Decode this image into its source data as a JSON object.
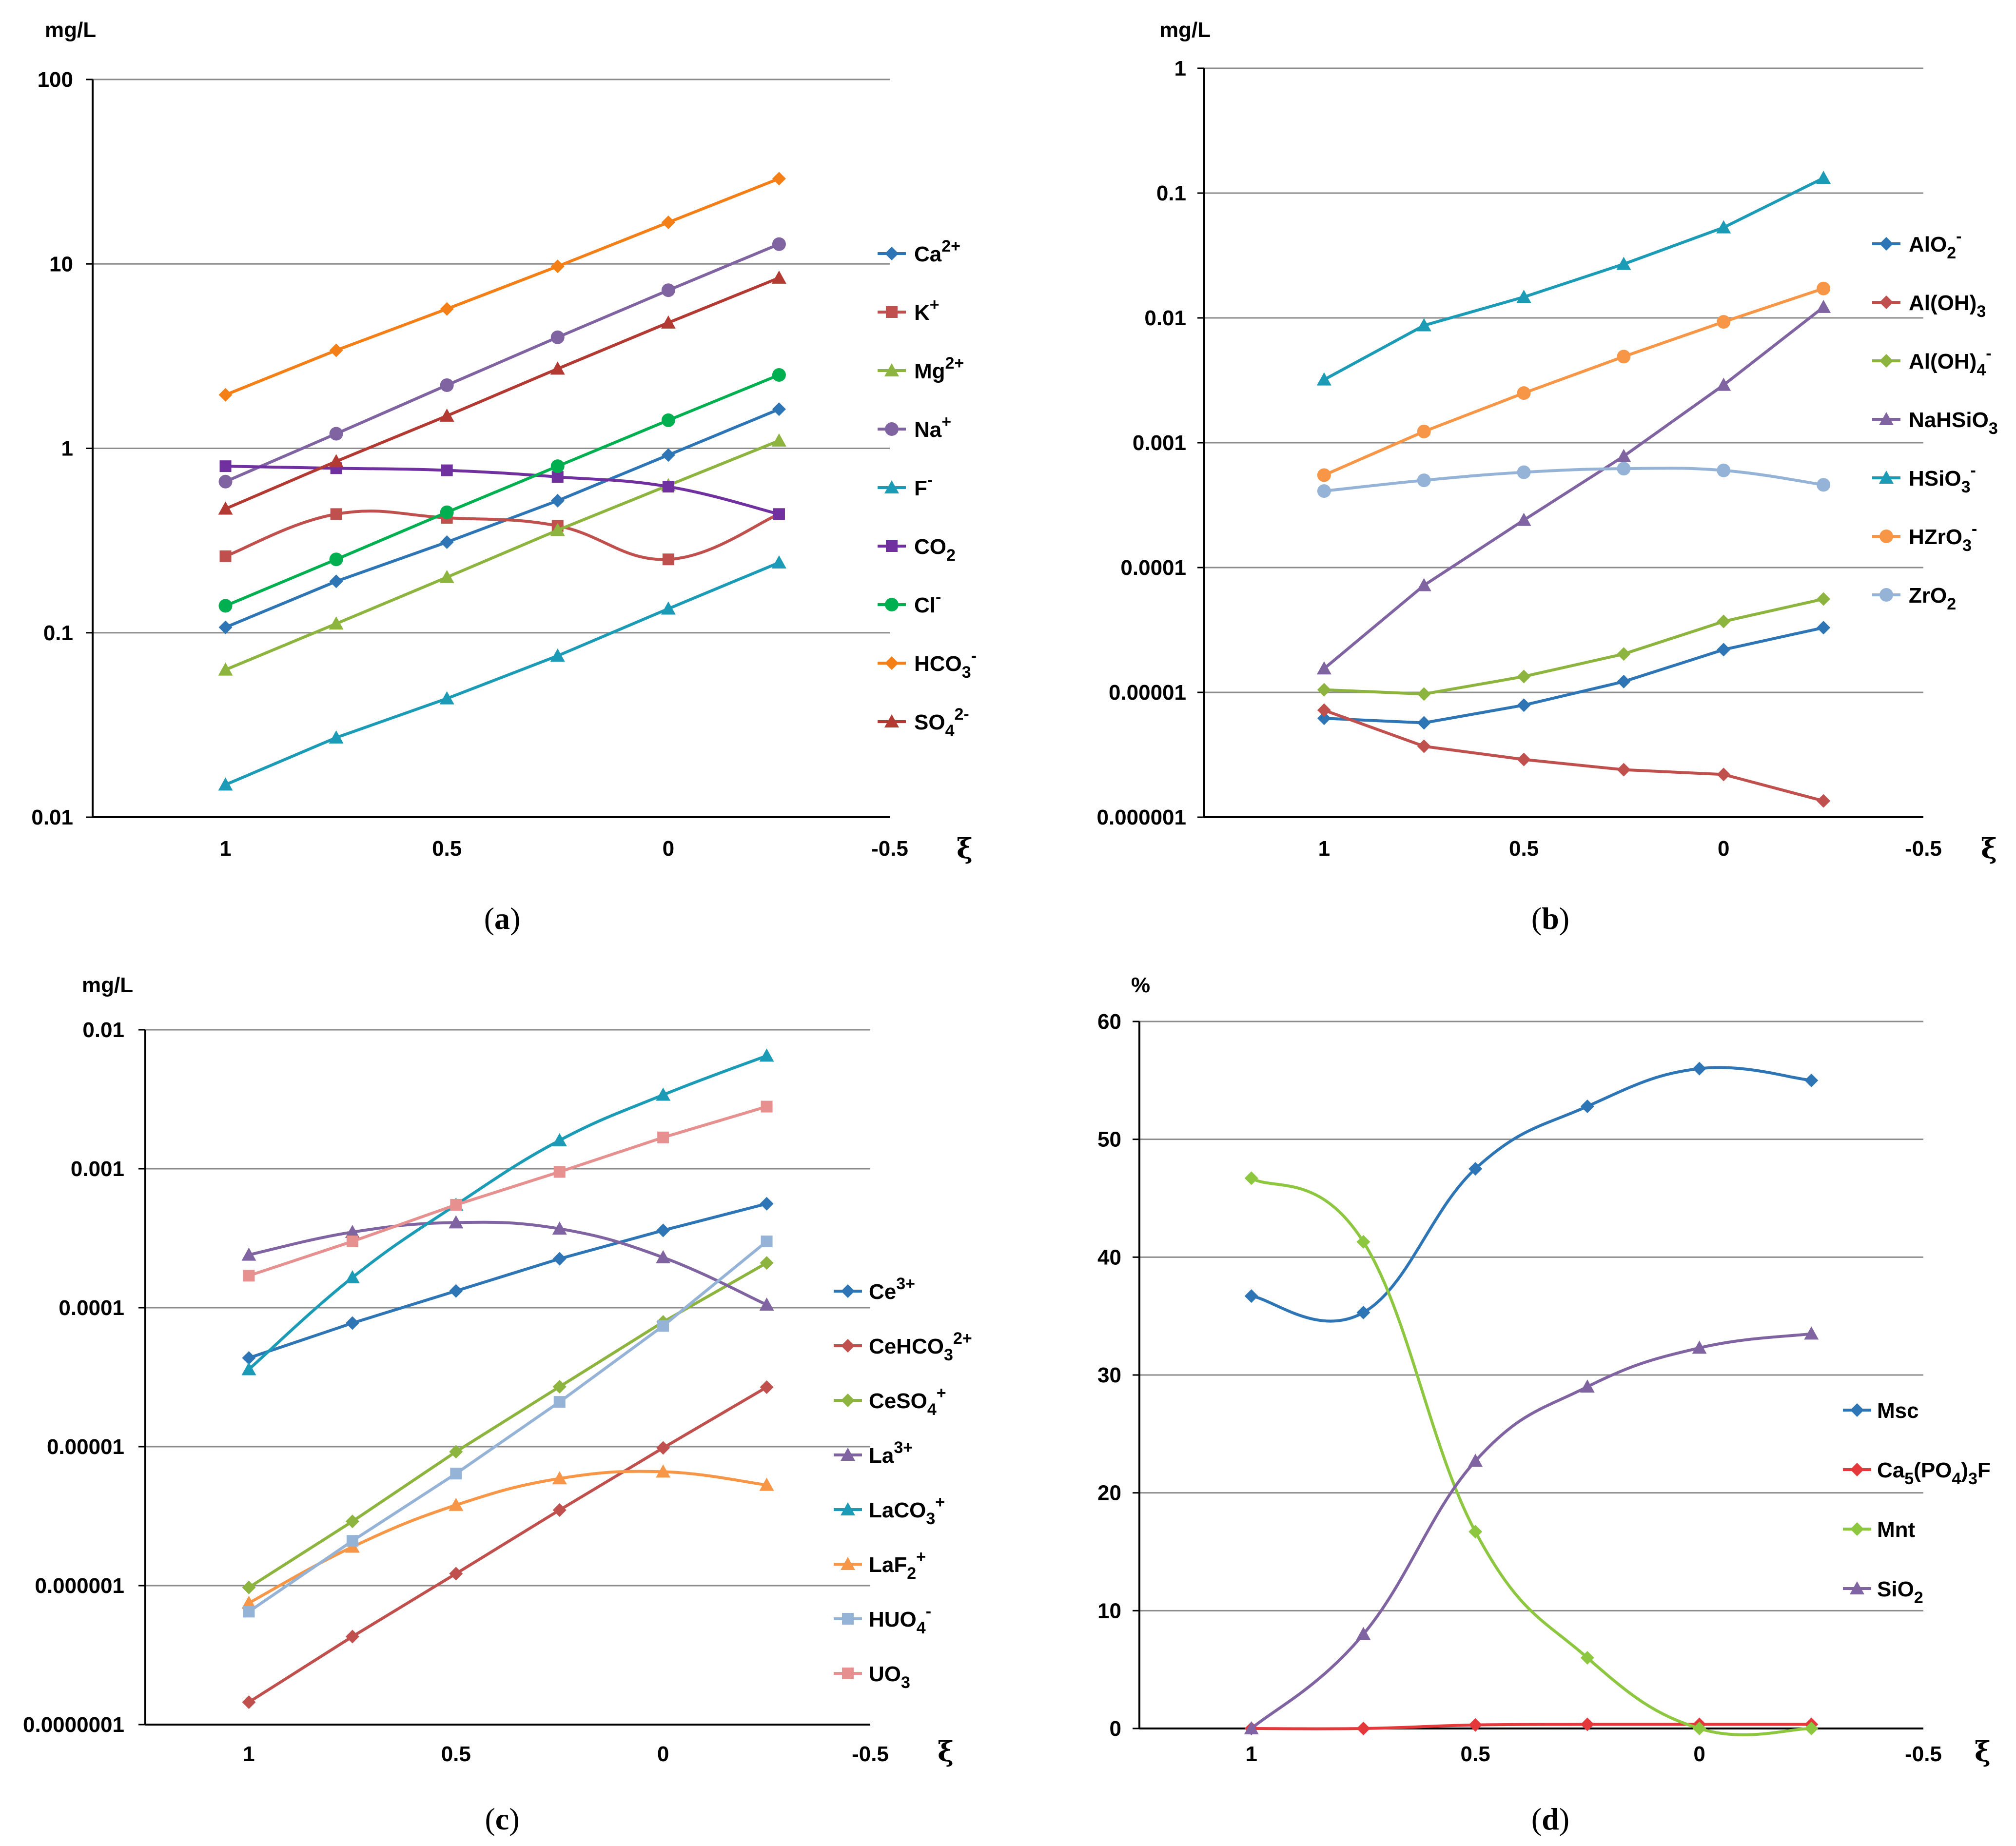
{
  "chart_data": [
    {
      "panel": "a",
      "caption_letter": "a",
      "type": "line",
      "yscale": "log",
      "ylabel": "mg/L",
      "xlabel": "ξ",
      "xlim": [
        1.3,
        -0.5
      ],
      "ylim": [
        0.01,
        100
      ],
      "x_ticks": [
        1,
        0.5,
        0,
        -0.5
      ],
      "x_tick_labels": [
        "1",
        "0.5",
        "0",
        "-0.5"
      ],
      "y_ticks": [
        0.01,
        0.1,
        1,
        10,
        100
      ],
      "y_tick_labels": [
        "0.01",
        "0.1",
        "1",
        "10",
        "100"
      ],
      "grid": true,
      "legend": "right",
      "x": [
        1,
        0.75,
        0.5,
        0.25,
        0,
        -0.25
      ],
      "series": [
        {
          "name": "Ca",
          "sup": "2+",
          "sub": "",
          "color": "#2E75B6",
          "marker": "diamond",
          "smooth": false,
          "values": [
            0.107,
            0.19,
            0.31,
            0.52,
            0.92,
            1.63
          ]
        },
        {
          "name": "K",
          "sup": "+",
          "sub": "",
          "color": "#C0504D",
          "marker": "square",
          "smooth": true,
          "values": [
            0.26,
            0.44,
            0.42,
            0.38,
            0.25,
            0.44
          ]
        },
        {
          "name": "Mg",
          "sup": "2+",
          "sub": "",
          "color": "#8DB43E",
          "marker": "triangle",
          "smooth": false,
          "values": [
            0.063,
            0.112,
            0.2,
            0.36,
            0.63,
            1.1
          ]
        },
        {
          "name": "Na",
          "sup": "+",
          "sub": "",
          "color": "#8064A2",
          "marker": "circle",
          "smooth": false,
          "values": [
            0.66,
            1.2,
            2.2,
            4.0,
            7.2,
            12.8
          ]
        },
        {
          "name": "F",
          "sup": "-",
          "sub": "",
          "color": "#1B9BB5",
          "marker": "triangle",
          "smooth": false,
          "values": [
            0.015,
            0.027,
            0.044,
            0.075,
            0.135,
            0.24
          ]
        },
        {
          "name": "CO",
          "sup": "",
          "sub": "2",
          "color": "#7030A0",
          "marker": "square",
          "smooth": true,
          "values": [
            0.8,
            0.78,
            0.76,
            0.7,
            0.62,
            0.44
          ]
        },
        {
          "name": "Cl",
          "sup": "-",
          "sub": "",
          "color": "#00B050",
          "marker": "circle",
          "smooth": false,
          "values": [
            0.14,
            0.25,
            0.45,
            0.8,
            1.42,
            2.5
          ]
        },
        {
          "name": "HCO",
          "sup": "-",
          "sub": "3",
          "color": "#F57F17",
          "marker": "diamond",
          "smooth": false,
          "values": [
            1.95,
            3.4,
            5.7,
            9.7,
            16.8,
            29.0
          ]
        },
        {
          "name": "SO",
          "sup": "2-",
          "sub": "4",
          "color": "#B23A32",
          "marker": "triangle",
          "smooth": false,
          "values": [
            0.47,
            0.85,
            1.5,
            2.7,
            4.8,
            8.4
          ]
        }
      ]
    },
    {
      "panel": "b",
      "caption_letter": "b",
      "type": "line",
      "yscale": "log",
      "ylabel": "mg/L",
      "xlabel": "ξ",
      "xlim": [
        1.3,
        -0.5
      ],
      "ylim": [
        1e-06,
        1
      ],
      "x_ticks": [
        1,
        0.5,
        0,
        -0.5
      ],
      "x_tick_labels": [
        "1",
        "0.5",
        "0",
        "-0.5"
      ],
      "y_ticks": [
        1e-06,
        1e-05,
        0.0001,
        0.001,
        0.01,
        0.1,
        1
      ],
      "y_tick_labels": [
        "0.000001",
        "0.00001",
        "0.0001",
        "0.001",
        "0.01",
        "0.1",
        "1"
      ],
      "grid": true,
      "legend": "right",
      "x": [
        1,
        0.75,
        0.5,
        0.25,
        0,
        -0.25
      ],
      "series": [
        {
          "name": "AlO",
          "sup": "-",
          "sub": "2",
          "color": "#2E75B6",
          "marker": "diamond",
          "smooth": false,
          "values": [
            6.2e-06,
            5.7e-06,
            7.9e-06,
            1.22e-05,
            2.2e-05,
            3.3e-05
          ]
        },
        {
          "name": "Al(OH)",
          "sup": "",
          "sub": "3",
          "color": "#C0504D",
          "marker": "diamond",
          "smooth": false,
          "values": [
            7.2e-06,
            3.7e-06,
            2.9e-06,
            2.4e-06,
            2.2e-06,
            1.35e-06
          ]
        },
        {
          "name": "Al(OH)",
          "sup": "-",
          "sub": "4",
          "color": "#8DB43E",
          "marker": "diamond",
          "smooth": false,
          "values": [
            1.05e-05,
            9.7e-06,
            1.34e-05,
            2.03e-05,
            3.7e-05,
            5.6e-05
          ]
        },
        {
          "name": "NaHSiO",
          "sup": "",
          "sub": "3",
          "color": "#8064A2",
          "marker": "triangle",
          "smooth": false,
          "values": [
            1.55e-05,
            7.2e-05,
            0.00024,
            0.00078,
            0.0029,
            0.0122
          ]
        },
        {
          "name": "HSiO",
          "sup": "-",
          "sub": "3",
          "color": "#1B9BB5",
          "marker": "triangle",
          "smooth": false,
          "values": [
            0.0032,
            0.0087,
            0.0147,
            0.027,
            0.053,
            0.132
          ]
        },
        {
          "name": "HZrO",
          "sup": "-",
          "sub": "3",
          "color": "#F79646",
          "marker": "circle",
          "smooth": false,
          "values": [
            0.00055,
            0.00123,
            0.0025,
            0.0049,
            0.0093,
            0.0172
          ]
        },
        {
          "name": "ZrO",
          "sup": "",
          "sub": "2",
          "color": "#95B3D7",
          "marker": "circle",
          "smooth": true,
          "values": [
            0.00041,
            0.0005,
            0.00058,
            0.00062,
            0.0006,
            0.00046
          ]
        }
      ]
    },
    {
      "panel": "c",
      "caption_letter": "c",
      "type": "line",
      "yscale": "log",
      "ylabel": "mg/L",
      "xlabel": "ξ",
      "xlim": [
        1.25,
        -0.5
      ],
      "ylim": [
        1e-07,
        0.01
      ],
      "x_ticks": [
        1,
        0.5,
        0,
        -0.5
      ],
      "x_tick_labels": [
        "1",
        "0.5",
        "0",
        "-0.5"
      ],
      "y_ticks": [
        1e-07,
        1e-06,
        1e-05,
        0.0001,
        0.001,
        0.01
      ],
      "y_tick_labels": [
        "0.0000001",
        "0.000001",
        "0.00001",
        "0.0001",
        "0.001",
        "0.01"
      ],
      "grid": true,
      "legend": "right",
      "x": [
        1,
        0.75,
        0.5,
        0.25,
        0,
        -0.25
      ],
      "series": [
        {
          "name": "Ce",
          "sup": "3+",
          "sub": "",
          "color": "#2E75B6",
          "marker": "diamond",
          "smooth": false,
          "values": [
            4.35e-05,
            7.75e-05,
            0.000132,
            0.000225,
            0.00036,
            0.00056
          ]
        },
        {
          "name": "CeHCO",
          "sup": "2+",
          "sub": "3",
          "color": "#C0504D",
          "marker": "diamond",
          "smooth": false,
          "values": [
            1.45e-07,
            4.3e-07,
            1.22e-06,
            3.5e-06,
            9.8e-06,
            2.68e-05
          ]
        },
        {
          "name": "CeSO",
          "sup": "+",
          "sub": "4",
          "color": "#8DB43E",
          "marker": "diamond",
          "smooth": false,
          "values": [
            9.7e-07,
            2.9e-06,
            9.2e-06,
            2.7e-05,
            7.9e-05,
            0.00021
          ]
        },
        {
          "name": "La",
          "sup": "3+",
          "sub": "",
          "color": "#8064A2",
          "marker": "triangle",
          "smooth": true,
          "values": [
            0.00024,
            0.00035,
            0.00041,
            0.00037,
            0.00023,
            0.000105
          ]
        },
        {
          "name": "LaCO",
          "sup": "+",
          "sub": "3",
          "color": "#1B9BB5",
          "marker": "triangle",
          "smooth": true,
          "values": [
            3.6e-05,
            0.000165,
            0.00055,
            0.0016,
            0.0034,
            0.0065
          ]
        },
        {
          "name": "LaF",
          "sup": "+",
          "sub": "2",
          "color": "#F79646",
          "marker": "triangle",
          "smooth": true,
          "values": [
            7.5e-07,
            1.9e-06,
            3.8e-06,
            5.9e-06,
            6.6e-06,
            5.3e-06
          ]
        },
        {
          "name": "HUO",
          "sup": "-",
          "sub": "4",
          "color": "#95B3D7",
          "marker": "square",
          "smooth": false,
          "values": [
            6.5e-07,
            2.1e-06,
            6.4e-06,
            2.1e-05,
            7.4e-05,
            0.0003
          ]
        },
        {
          "name": "UO",
          "sup": "",
          "sub": "3",
          "color": "#E6908F",
          "marker": "square",
          "smooth": false,
          "values": [
            0.00017,
            0.0003,
            0.00055,
            0.00095,
            0.00168,
            0.0028
          ]
        }
      ]
    },
    {
      "panel": "d",
      "caption_letter": "d",
      "type": "line",
      "yscale": "linear",
      "ylabel": "%",
      "xlabel": "ξ",
      "xlim": [
        1.25,
        -0.5
      ],
      "ylim": [
        0,
        60
      ],
      "x_ticks": [
        1,
        0.5,
        0,
        -0.5
      ],
      "x_tick_labels": [
        "1",
        "0.5",
        "0",
        "-0.5"
      ],
      "y_ticks": [
        0,
        10,
        20,
        30,
        40,
        50,
        60
      ],
      "y_tick_labels": [
        "0",
        "10",
        "20",
        "30",
        "40",
        "50",
        "60"
      ],
      "grid": true,
      "legend": "right",
      "x": [
        1,
        0.75,
        0.5,
        0.25,
        0,
        -0.25
      ],
      "series": [
        {
          "name": "Msc",
          "sup": "",
          "sub": "",
          "color": "#2E75B6",
          "marker": "diamond",
          "smooth": true,
          "values": [
            36.7,
            35.3,
            47.5,
            52.8,
            56.0,
            55.0
          ]
        },
        {
          "name": "Ca",
          "sup": "",
          "sub": "5",
          "tail": "(PO",
          "tail_sub": "4",
          "tail2": ")",
          "tail2_sub": "3",
          "tail3": "F",
          "color": "#E5383B",
          "marker": "diamond",
          "smooth": true,
          "values": [
            0.0,
            0.0,
            0.3,
            0.35,
            0.35,
            0.35
          ]
        },
        {
          "name": "Mnt",
          "sup": "",
          "sub": "",
          "color": "#8DC63F",
          "marker": "diamond",
          "smooth": true,
          "values": [
            46.7,
            41.3,
            16.7,
            6.0,
            0.0,
            0.0
          ]
        },
        {
          "name": "SiO",
          "sup": "",
          "sub": "2",
          "color": "#8064A2",
          "marker": "triangle",
          "smooth": true,
          "values": [
            0.0,
            8.0,
            22.7,
            29.0,
            32.3,
            33.5
          ]
        }
      ]
    }
  ]
}
